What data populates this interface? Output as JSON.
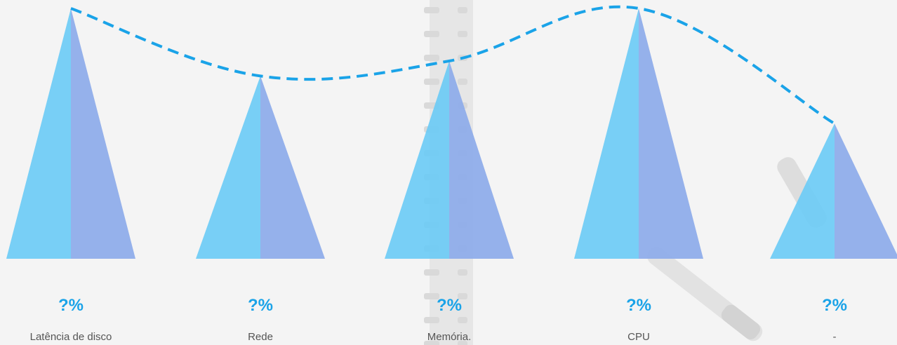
{
  "chart_data": {
    "type": "bar",
    "categories": [
      "Latência de disco",
      "Rede",
      "Memória.",
      "CPU",
      "-"
    ],
    "values": [
      100,
      73,
      79,
      100,
      54
    ],
    "value_labels": [
      "?%",
      "?%",
      "?%",
      "?%",
      "?%"
    ],
    "ylim": [
      0,
      100
    ],
    "grid": false,
    "trend_line": "dashed"
  },
  "colors": {
    "bar_left": "#6dcbf5",
    "bar_right": "#8fadea",
    "trend_line": "#1aa3e8",
    "value_label": "#1aa3e8",
    "category_label": "#555555",
    "background": "#f3f3f3"
  }
}
